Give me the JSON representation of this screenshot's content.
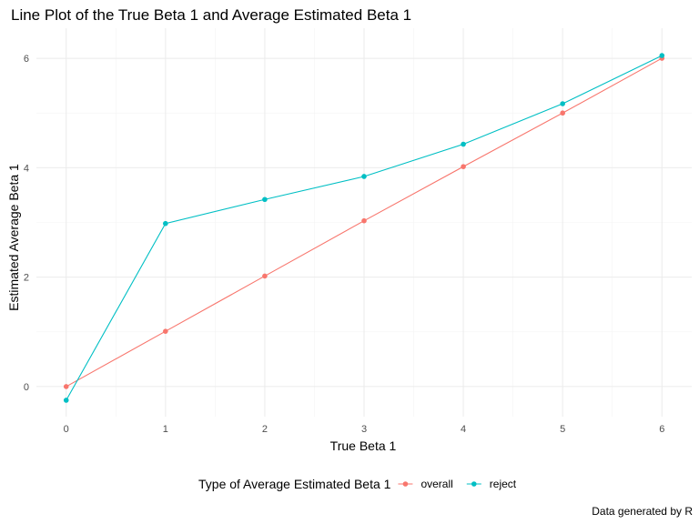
{
  "chart_data": {
    "type": "line",
    "title": "Line Plot of the True Beta 1 and Average Estimated Beta 1",
    "xlabel": "True Beta 1",
    "ylabel": "Estimated Average Beta 1",
    "caption": "Data generated by R",
    "x": [
      0,
      1,
      2,
      3,
      4,
      5,
      6
    ],
    "xlim": [
      -0.3,
      6.3
    ],
    "ylim": [
      -0.55,
      6.55
    ],
    "xticks": [
      0,
      1,
      2,
      3,
      4,
      5,
      6
    ],
    "yticks": [
      0,
      2,
      4,
      6
    ],
    "grid": true,
    "legend": {
      "title": "Type of Average Estimated Beta 1",
      "position": "bottom"
    },
    "series": [
      {
        "name": "overall",
        "color": "#F8766D",
        "values": [
          0.0,
          1.01,
          2.02,
          3.03,
          4.02,
          5.0,
          6.0
        ]
      },
      {
        "name": "reject",
        "color": "#00BFC4",
        "values": [
          -0.25,
          2.98,
          3.42,
          3.84,
          4.43,
          5.17,
          6.05
        ]
      }
    ]
  }
}
